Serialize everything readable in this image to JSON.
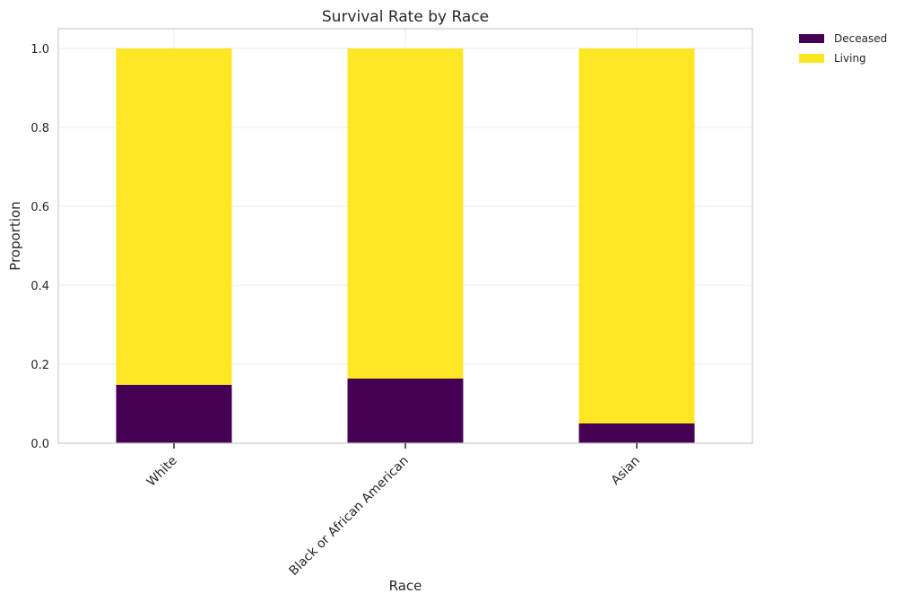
{
  "chart_data": {
    "type": "bar",
    "stacked": true,
    "title": "Survival Rate by Race",
    "xlabel": "Race",
    "ylabel": "Proportion",
    "categories": [
      "White",
      "Black or African American",
      "Asian"
    ],
    "series": [
      {
        "name": "Deceased",
        "color": "#440154",
        "values": [
          0.148,
          0.164,
          0.05
        ]
      },
      {
        "name": "Living",
        "color": "#fde725",
        "values": [
          0.852,
          0.836,
          0.95
        ]
      }
    ],
    "ylim": [
      0,
      1.05
    ],
    "yticks": [
      "0.0",
      "0.2",
      "0.4",
      "0.6",
      "0.8",
      "1.0"
    ],
    "grid": true,
    "legend_position": "outside-top-right"
  }
}
